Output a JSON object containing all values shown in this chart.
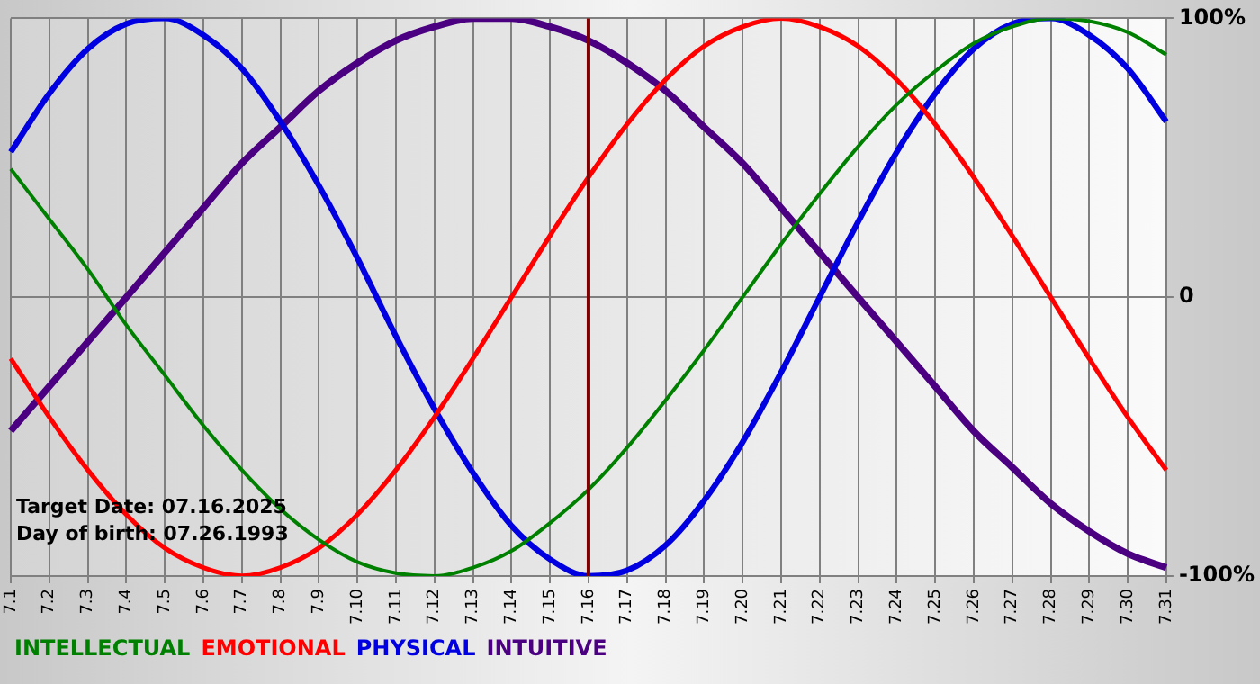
{
  "chart_data": {
    "type": "line",
    "categories": [
      "7.1",
      "7.2",
      "7.3",
      "7.4",
      "7.5",
      "7.6",
      "7.7",
      "7.8",
      "7.9",
      "7.10",
      "7.11",
      "7.12",
      "7.13",
      "7.14",
      "7.15",
      "7.16",
      "7.17",
      "7.18",
      "7.19",
      "7.20",
      "7.21",
      "7.22",
      "7.23",
      "7.24",
      "7.25",
      "7.26",
      "7.27",
      "7.28",
      "7.29",
      "7.30",
      "7.31"
    ],
    "series": [
      {
        "name": "INTELLECTUAL",
        "color": "#008000",
        "values": [
          46,
          28,
          10,
          -10,
          -28,
          -46,
          -62,
          -76,
          -87,
          -95,
          -99,
          -100,
          -97,
          -91,
          -81,
          -69,
          -54,
          -37,
          -19,
          0,
          19,
          37,
          54,
          69,
          81,
          91,
          97,
          100,
          99,
          95,
          87
        ]
      },
      {
        "name": "EMOTIONAL",
        "color": "#ff0000",
        "values": [
          -22,
          -43,
          -62,
          -78,
          -90,
          -97,
          -100,
          -97,
          -90,
          -78,
          -62,
          -43,
          -22,
          0,
          22,
          43,
          62,
          78,
          90,
          97,
          100,
          97,
          90,
          78,
          62,
          43,
          22,
          0,
          -22,
          -43,
          -62
        ]
      },
      {
        "name": "PHYSICAL",
        "color": "#0000e0",
        "values": [
          52,
          73,
          89,
          98,
          100,
          94,
          82,
          63,
          40,
          14,
          -14,
          -40,
          -63,
          -82,
          -94,
          -100,
          -98,
          -89,
          -73,
          -52,
          -27,
          0,
          27,
          52,
          73,
          89,
          98,
          100,
          94,
          82,
          63
        ]
      },
      {
        "name": "INTUITIVE",
        "color": "#4b0082",
        "values": [
          -48,
          -32,
          -16,
          0,
          16,
          32,
          48,
          61,
          74,
          84,
          92,
          97,
          100,
          100,
          97,
          92,
          84,
          74,
          61,
          48,
          32,
          16,
          0,
          -16,
          -32,
          -48,
          -61,
          -74,
          -84,
          -92,
          -97
        ]
      }
    ],
    "ylim": [
      -100,
      100
    ],
    "yticks": [
      {
        "value": -100,
        "label": "-100%"
      },
      0,
      {
        "value": 100,
        "label": "100%"
      }
    ],
    "ref_lines": [
      {
        "axis": "x",
        "value": "7.16",
        "color": "#800000"
      }
    ],
    "annotations": [
      "Target Date: 07.16.2025",
      "Day of birth: 07.26.1993"
    ],
    "grid": true,
    "legend": "bottom left",
    "marker": "none",
    "line_style": "solid"
  }
}
